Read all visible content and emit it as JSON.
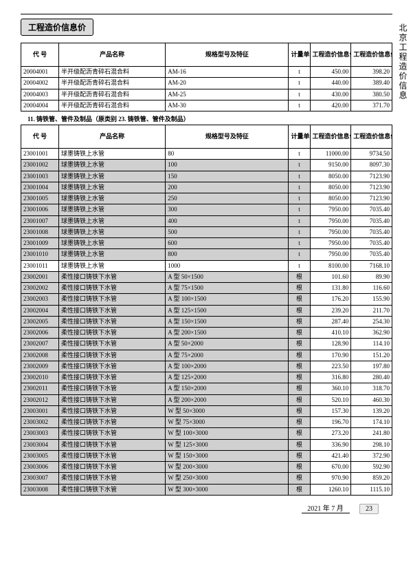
{
  "header": {
    "title": "工程造价信息价",
    "side": "北京工程造价信息"
  },
  "table1": {
    "cols": [
      "代  号",
      "产品名称",
      "规格型号及特征",
      "计量单位",
      "工程造价信息价（含税）",
      "工程造价信息价（除税）"
    ],
    "rows": [
      {
        "code": "20004001",
        "name": "半开级配沥青碎石混合料",
        "spec": "AM-16",
        "unit": "t",
        "p1": "450.00",
        "p2": "398.20"
      },
      {
        "code": "20004002",
        "name": "半开级配沥青碎石混合料",
        "spec": "AM-20",
        "unit": "t",
        "p1": "440.00",
        "p2": "389.40"
      },
      {
        "code": "20004003",
        "name": "半开级配沥青碎石混合料",
        "spec": "AM-25",
        "unit": "t",
        "p1": "430.00",
        "p2": "380.50"
      },
      {
        "code": "20004004",
        "name": "半开级配沥青碎石混合料",
        "spec": "AM-30",
        "unit": "t",
        "p1": "420.00",
        "p2": "371.70"
      }
    ]
  },
  "section2": "11. 铸铁管、管件及制品（原类别 23. 铸铁管、管件及制品）",
  "table2": {
    "cols": [
      "代  号",
      "产品名称",
      "规格型号及特征",
      "计量单位",
      "工程造价信息价（含税）",
      "工程造价信息价（除税）"
    ],
    "rows": [
      {
        "code": "23001001",
        "name": "球墨铸铁上水管",
        "spec": "80",
        "unit": "t",
        "p1": "11000.00",
        "p2": "9734.50",
        "shade": false
      },
      {
        "code": "23001002",
        "name": "球墨铸铁上水管",
        "spec": "100",
        "unit": "t",
        "p1": "9150.00",
        "p2": "8097.30",
        "shade": true
      },
      {
        "code": "23001003",
        "name": "球墨铸铁上水管",
        "spec": "150",
        "unit": "t",
        "p1": "8050.00",
        "p2": "7123.90",
        "shade": true
      },
      {
        "code": "23001004",
        "name": "球墨铸铁上水管",
        "spec": "200",
        "unit": "t",
        "p1": "8050.00",
        "p2": "7123.90",
        "shade": true
      },
      {
        "code": "23001005",
        "name": "球墨铸铁上水管",
        "spec": "250",
        "unit": "t",
        "p1": "8050.00",
        "p2": "7123.90",
        "shade": true
      },
      {
        "code": "23001006",
        "name": "球墨铸铁上水管",
        "spec": "300",
        "unit": "t",
        "p1": "7950.00",
        "p2": "7035.40",
        "shade": true
      },
      {
        "code": "23001007",
        "name": "球墨铸铁上水管",
        "spec": "400",
        "unit": "t",
        "p1": "7950.00",
        "p2": "7035.40",
        "shade": true
      },
      {
        "code": "23001008",
        "name": "球墨铸铁上水管",
        "spec": "500",
        "unit": "t",
        "p1": "7950.00",
        "p2": "7035.40",
        "shade": true
      },
      {
        "code": "23001009",
        "name": "球墨铸铁上水管",
        "spec": "600",
        "unit": "t",
        "p1": "7950.00",
        "p2": "7035.40",
        "shade": true
      },
      {
        "code": "23001010",
        "name": "球墨铸铁上水管",
        "spec": "800",
        "unit": "t",
        "p1": "7950.00",
        "p2": "7035.40",
        "shade": true
      },
      {
        "code": "23001011",
        "name": "球墨铸铁上水管",
        "spec": "1000",
        "unit": "t",
        "p1": "8100.00",
        "p2": "7168.10",
        "shade": false
      },
      {
        "code": "23002001",
        "name": "柔性接口铸铁下水管",
        "spec": "A 型   50×1500",
        "unit": "根",
        "p1": "101.60",
        "p2": "89.90",
        "shade": true
      },
      {
        "code": "23002002",
        "name": "柔性接口铸铁下水管",
        "spec": "A 型   75×1500",
        "unit": "根",
        "p1": "131.80",
        "p2": "116.60",
        "shade": true
      },
      {
        "code": "23002003",
        "name": "柔性接口铸铁下水管",
        "spec": "A 型   100×1500",
        "unit": "根",
        "p1": "176.20",
        "p2": "155.90",
        "shade": true
      },
      {
        "code": "23002004",
        "name": "柔性接口铸铁下水管",
        "spec": "A 型   125×1500",
        "unit": "根",
        "p1": "239.20",
        "p2": "211.70",
        "shade": true
      },
      {
        "code": "23002005",
        "name": "柔性接口铸铁下水管",
        "spec": "A 型   150×1500",
        "unit": "根",
        "p1": "287.40",
        "p2": "254.30",
        "shade": true
      },
      {
        "code": "23002006",
        "name": "柔性接口铸铁下水管",
        "spec": "A 型   200×1500",
        "unit": "根",
        "p1": "410.10",
        "p2": "362.90",
        "shade": true
      },
      {
        "code": "23002007",
        "name": "柔性接口铸铁下水管",
        "spec": "A 型   50×2000",
        "unit": "根",
        "p1": "128.90",
        "p2": "114.10",
        "shade": true
      },
      {
        "code": "23002008",
        "name": "柔性接口铸铁下水管",
        "spec": "A 型   75×2000",
        "unit": "根",
        "p1": "170.90",
        "p2": "151.20",
        "shade": true
      },
      {
        "code": "23002009",
        "name": "柔性接口铸铁下水管",
        "spec": "A 型   100×2000",
        "unit": "根",
        "p1": "223.50",
        "p2": "197.80",
        "shade": true
      },
      {
        "code": "23002010",
        "name": "柔性接口铸铁下水管",
        "spec": "A 型   125×2000",
        "unit": "根",
        "p1": "316.80",
        "p2": "280.40",
        "shade": true
      },
      {
        "code": "23002011",
        "name": "柔性接口铸铁下水管",
        "spec": "A 型   150×2000",
        "unit": "根",
        "p1": "360.10",
        "p2": "318.70",
        "shade": true
      },
      {
        "code": "23002012",
        "name": "柔性接口铸铁下水管",
        "spec": "A 型   200×2000",
        "unit": "根",
        "p1": "520.10",
        "p2": "460.30",
        "shade": true
      },
      {
        "code": "23003001",
        "name": "柔性接口铸铁下水管",
        "spec": "W 型   50×3000",
        "unit": "根",
        "p1": "157.30",
        "p2": "139.20",
        "shade": true
      },
      {
        "code": "23003002",
        "name": "柔性接口铸铁下水管",
        "spec": "W 型   75×3000",
        "unit": "根",
        "p1": "196.70",
        "p2": "174.10",
        "shade": true
      },
      {
        "code": "23003003",
        "name": "柔性接口铸铁下水管",
        "spec": "W 型   100×3000",
        "unit": "根",
        "p1": "273.20",
        "p2": "241.80",
        "shade": true
      },
      {
        "code": "23003004",
        "name": "柔性接口铸铁下水管",
        "spec": "W 型   125×3000",
        "unit": "根",
        "p1": "336.90",
        "p2": "298.10",
        "shade": true
      },
      {
        "code": "23003005",
        "name": "柔性接口铸铁下水管",
        "spec": "W 型   150×3000",
        "unit": "根",
        "p1": "421.40",
        "p2": "372.90",
        "shade": true
      },
      {
        "code": "23003006",
        "name": "柔性接口铸铁下水管",
        "spec": "W 型   200×3000",
        "unit": "根",
        "p1": "670.00",
        "p2": "592.90",
        "shade": true
      },
      {
        "code": "23003007",
        "name": "柔性接口铸铁下水管",
        "spec": "W 型   250×3000",
        "unit": "根",
        "p1": "970.90",
        "p2": "859.20",
        "shade": true
      },
      {
        "code": "23003008",
        "name": "柔性接口铸铁下水管",
        "spec": "W 型   300×3000",
        "unit": "根",
        "p1": "1260.10",
        "p2": "1115.10",
        "shade": true
      }
    ]
  },
  "footer": {
    "date": "2021 年 7 月",
    "page": "23"
  }
}
